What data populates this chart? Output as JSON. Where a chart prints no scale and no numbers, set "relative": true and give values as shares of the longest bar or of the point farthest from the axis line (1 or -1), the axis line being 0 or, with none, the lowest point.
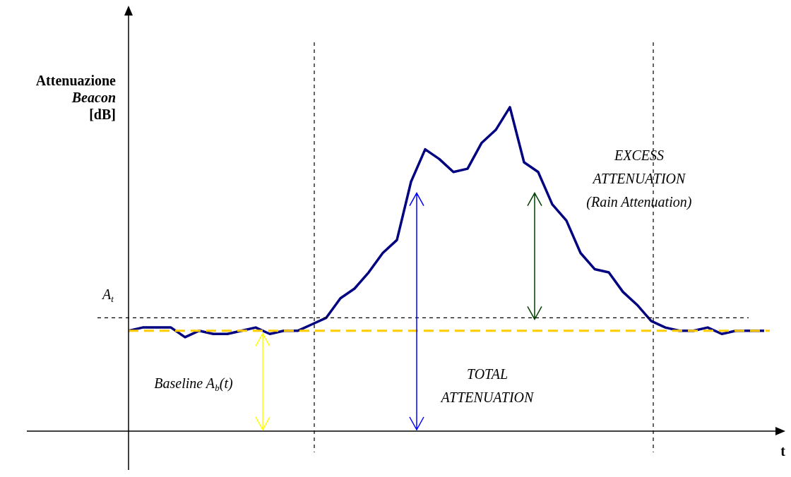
{
  "chart_data": {
    "type": "line",
    "relative": true,
    "ylabel": "Attenuazione Beacon [dB]",
    "xlabel": "t",
    "categories": [
      null,
      null,
      null,
      null,
      null,
      null,
      null,
      null,
      null,
      null,
      null,
      null,
      null,
      null,
      null,
      null,
      null,
      null,
      null,
      null,
      null,
      null,
      null,
      null,
      null,
      null,
      null,
      null,
      null,
      null,
      null,
      null,
      null,
      null,
      null,
      null,
      null,
      null,
      null,
      null,
      null,
      null,
      null,
      null,
      null,
      null
    ],
    "values": [
      0.31,
      0.32,
      0.32,
      0.32,
      0.29,
      0.31,
      0.3,
      0.3,
      0.31,
      0.32,
      0.3,
      0.31,
      0.31,
      0.33,
      0.35,
      0.41,
      0.44,
      0.49,
      0.55,
      0.59,
      0.77,
      0.87,
      0.84,
      0.8,
      0.81,
      0.89,
      0.93,
      1,
      0.83,
      0.8,
      0.7,
      0.65,
      0.55,
      0.5,
      0.49,
      0.43,
      0.39,
      0.34,
      0.32,
      0.31,
      0.31,
      0.32,
      0.3,
      0.31,
      0.31,
      0.31
    ],
    "color": "#000080",
    "marker": "none",
    "legend": false,
    "ref_lines": [
      {
        "axis": "y",
        "value": 0.35,
        "label": "A$_{t}$",
        "color": "#000000",
        "line_style": "dashed"
      },
      {
        "axis": "y",
        "value": 0.31,
        "label": null,
        "color": "#ffcc00",
        "line_style": "dashed"
      }
    ],
    "annotations": [
      "Baseline A$_{b}$(t)",
      "TOTAL ATTENUATION",
      "EXCESS ATTENUATION (Rain Attenuation)"
    ]
  }
}
